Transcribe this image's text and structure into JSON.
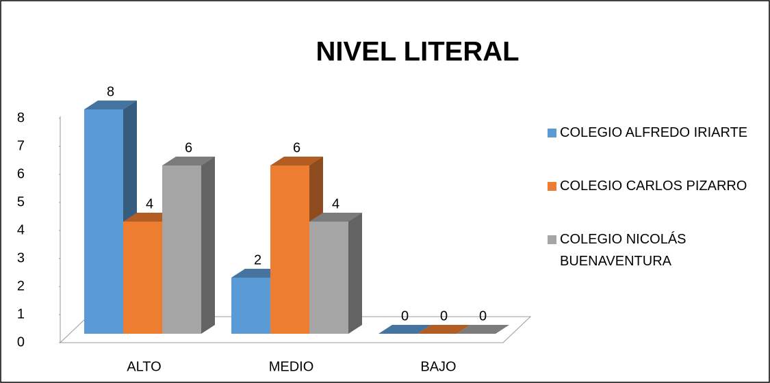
{
  "chart_data": {
    "type": "bar3d",
    "title": "NIVEL LITERAL",
    "categories": [
      "ALTO",
      "MEDIO",
      "BAJO"
    ],
    "series": [
      {
        "name": "COLEGIO ALFREDO IRIARTE",
        "color": "#5b9bd5",
        "values": [
          8,
          2,
          0
        ]
      },
      {
        "name": "COLEGIO CARLOS PIZARRO",
        "color": "#ed7d31",
        "values": [
          4,
          6,
          0
        ]
      },
      {
        "name": "COLEGIO NICOLÁS BUENAVENTURA",
        "color": "#a5a5a5",
        "values": [
          6,
          4,
          0
        ]
      }
    ],
    "ylim": [
      0,
      8
    ],
    "yticks": [
      0,
      1,
      2,
      3,
      4,
      5,
      6,
      7,
      8
    ],
    "legend": "right"
  }
}
